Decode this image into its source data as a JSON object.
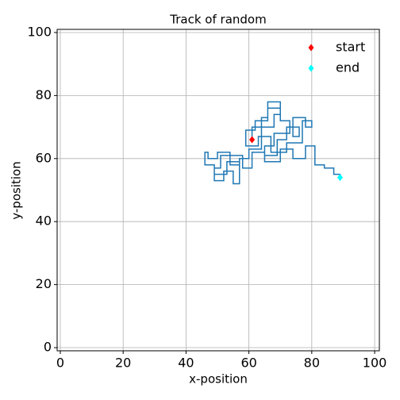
{
  "chart_data": {
    "type": "line",
    "title": "Track of random",
    "xlabel": "x-position",
    "ylabel": "y-position",
    "xlim": [
      -1,
      101.5
    ],
    "ylim": [
      -1,
      101
    ],
    "xticks": [
      0,
      20,
      40,
      60,
      80,
      100
    ],
    "yticks": [
      0,
      20,
      40,
      60,
      80,
      100
    ],
    "grid": true,
    "legend": "upper right",
    "series": [
      {
        "name": null,
        "color": "#1f77b4",
        "x": [
          61,
          61,
          64,
          64,
          66,
          66,
          70,
          70,
          73,
          73,
          68,
          68,
          65,
          65,
          69,
          69,
          72,
          72,
          76,
          76,
          74,
          74,
          78,
          78,
          80,
          80,
          77,
          77,
          72,
          72,
          67,
          67,
          63,
          63,
          59,
          59,
          62,
          62,
          66,
          66,
          70,
          70,
          68,
          68,
          64,
          64,
          60,
          60,
          57,
          57,
          54,
          54,
          50,
          50,
          47,
          47,
          46,
          46,
          49,
          49,
          53,
          53,
          57,
          57,
          55,
          55,
          52,
          52,
          49,
          49,
          51,
          51,
          58,
          58,
          61,
          61,
          65,
          65,
          70,
          70,
          74,
          74,
          78,
          78,
          81,
          81,
          84,
          84,
          87,
          87,
          89,
          89
        ],
        "values": [
          66,
          70,
          70,
          73,
          73,
          76,
          76,
          72,
          72,
          68,
          68,
          64,
          64,
          61,
          61,
          66,
          66,
          70,
          70,
          67,
          67,
          73,
          73,
          70,
          70,
          72,
          72,
          65,
          65,
          62,
          62,
          67,
          67,
          64,
          64,
          69,
          69,
          72,
          72,
          78,
          78,
          74,
          74,
          70,
          70,
          63,
          63,
          60,
          60,
          58,
          58,
          62,
          62,
          60,
          60,
          62,
          62,
          58,
          58,
          55,
          55,
          59,
          59,
          52,
          52,
          56,
          56,
          53,
          53,
          57,
          57,
          61,
          61,
          57,
          57,
          62,
          62,
          59,
          59,
          63,
          63,
          60,
          60,
          64,
          64,
          58,
          58,
          57,
          57,
          55,
          55,
          54
        ]
      },
      {
        "name": "start",
        "color": "#ff0000",
        "x": [
          61
        ],
        "values": [
          66
        ]
      },
      {
        "name": "end",
        "color": "#00ffff",
        "x": [
          89
        ],
        "values": [
          54
        ]
      }
    ]
  }
}
